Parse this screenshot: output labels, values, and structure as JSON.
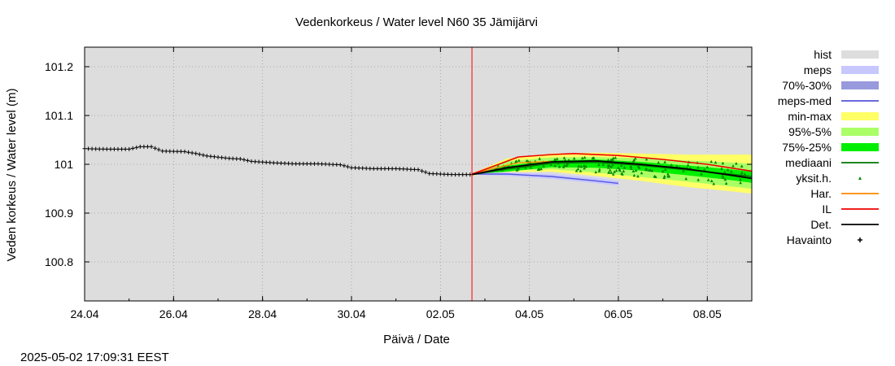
{
  "chart_data": {
    "type": "line",
    "title": "Vedenkorkeus / Water level   N60 35 Jämijärvi",
    "xlabel": "Päivä / Date",
    "ylabel": "Veden korkeus / Water level (m)",
    "timestamp": "2025-05-02 17:09:31 EEST",
    "x_range": [
      "2025-04-24",
      "2025-05-09"
    ],
    "ylim": [
      100.72,
      101.24
    ],
    "x_ticks": [
      {
        "date": "2025-04-24",
        "label": "24.04"
      },
      {
        "date": "2025-04-26",
        "label": "26.04"
      },
      {
        "date": "2025-04-28",
        "label": "28.04"
      },
      {
        "date": "2025-04-30",
        "label": "30.04"
      },
      {
        "date": "2025-05-02",
        "label": "02.05"
      },
      {
        "date": "2025-05-04",
        "label": "04.05"
      },
      {
        "date": "2025-05-06",
        "label": "06.05"
      },
      {
        "date": "2025-05-08",
        "label": "08.05"
      }
    ],
    "y_ticks": [
      {
        "value": 100.8,
        "label": "100.8"
      },
      {
        "value": 100.9,
        "label": "100.9"
      },
      {
        "value": 101.0,
        "label": "101"
      },
      {
        "value": 101.1,
        "label": "101.1"
      },
      {
        "value": 101.2,
        "label": "101.2"
      }
    ],
    "grid": true,
    "legend_position": "right",
    "forecast_start": "2025-05-02 17:00",
    "colors": {
      "hist": "#dddddd",
      "meps": "#c8c8ff",
      "meps_70_30": "#9999dd",
      "meps_med": "#5555dd",
      "min_max": "#ffff66",
      "p95_5": "#aaff66",
      "p75_25": "#00ee00",
      "mediaani": "#007700",
      "yksit": "#008800",
      "har": "#ff8800",
      "il": "#ee0000",
      "det": "#000000",
      "havainto": "#000000",
      "now_line": "#ff0000"
    },
    "legend": [
      {
        "label": "hist",
        "kind": "band",
        "color": "#dddddd"
      },
      {
        "label": "meps",
        "kind": "band",
        "color": "#c8c8ff"
      },
      {
        "label": "70%-30%",
        "kind": "band",
        "color": "#9999dd"
      },
      {
        "label": "meps-med",
        "kind": "line",
        "color": "#5555dd"
      },
      {
        "label": "min-max",
        "kind": "band",
        "color": "#ffff66"
      },
      {
        "label": "95%-5%",
        "kind": "band",
        "color": "#aaff66"
      },
      {
        "label": "75%-25%",
        "kind": "band",
        "color": "#00ee00"
      },
      {
        "label": "mediaani",
        "kind": "line",
        "color": "#007700"
      },
      {
        "label": "yksit.h.",
        "kind": "dot",
        "color": "#008800"
      },
      {
        "label": "Har.",
        "kind": "line",
        "color": "#ff8800"
      },
      {
        "label": "IL",
        "kind": "line",
        "color": "#ee0000"
      },
      {
        "label": "Det.",
        "kind": "line",
        "color": "#000000"
      },
      {
        "label": "Havainto",
        "kind": "cross",
        "color": "#000000"
      }
    ],
    "series": [
      {
        "name": "Havainto",
        "kind": "observation",
        "points": [
          [
            "2025-04-24 00:00",
            101.032
          ],
          [
            "2025-04-24 12:00",
            101.031
          ],
          [
            "2025-04-25 00:00",
            101.031
          ],
          [
            "2025-04-25 06:00",
            101.036
          ],
          [
            "2025-04-25 12:00",
            101.036
          ],
          [
            "2025-04-25 18:00",
            101.027
          ],
          [
            "2025-04-26 06:00",
            101.026
          ],
          [
            "2025-04-26 12:00",
            101.022
          ],
          [
            "2025-04-26 18:00",
            101.017
          ],
          [
            "2025-04-27 06:00",
            101.012
          ],
          [
            "2025-04-27 12:00",
            101.011
          ],
          [
            "2025-04-27 18:00",
            101.006
          ],
          [
            "2025-04-28 06:00",
            101.003
          ],
          [
            "2025-04-28 12:00",
            101.002
          ],
          [
            "2025-04-28 18:00",
            101.001
          ],
          [
            "2025-04-29 06:00",
            101.001
          ],
          [
            "2025-04-29 12:00",
            101.0
          ],
          [
            "2025-04-29 18:00",
            100.999
          ],
          [
            "2025-04-30 00:00",
            100.993
          ],
          [
            "2025-04-30 12:00",
            100.991
          ],
          [
            "2025-05-01 00:00",
            100.991
          ],
          [
            "2025-05-01 12:00",
            100.989
          ],
          [
            "2025-05-01 18:00",
            100.981
          ],
          [
            "2025-05-02 06:00",
            100.979
          ],
          [
            "2025-05-02 17:00",
            100.979
          ]
        ]
      },
      {
        "name": "Det.",
        "kind": "line",
        "points": [
          [
            "2025-05-02 17:00",
            100.979
          ],
          [
            "2025-05-03 12:00",
            100.993
          ],
          [
            "2025-05-04 12:00",
            101.005
          ],
          [
            "2025-05-05 12:00",
            101.007
          ],
          [
            "2025-05-06 12:00",
            101.0
          ],
          [
            "2025-05-07 12:00",
            100.991
          ],
          [
            "2025-05-08 12:00",
            100.978
          ],
          [
            "2025-05-09 00:00",
            100.971
          ]
        ]
      },
      {
        "name": "IL",
        "kind": "line",
        "points": [
          [
            "2025-05-02 17:00",
            100.98
          ],
          [
            "2025-05-03 06:00",
            100.998
          ],
          [
            "2025-05-03 18:00",
            101.015
          ],
          [
            "2025-05-04 12:00",
            101.02
          ],
          [
            "2025-05-05 00:00",
            101.022
          ],
          [
            "2025-05-06 00:00",
            101.018
          ],
          [
            "2025-05-07 00:00",
            101.01
          ],
          [
            "2025-05-08 00:00",
            101.0
          ],
          [
            "2025-05-09 00:00",
            100.986
          ]
        ]
      },
      {
        "name": "Har.",
        "kind": "line",
        "points": [
          [
            "2025-05-02 17:00",
            100.98
          ],
          [
            "2025-05-03 06:00",
            100.993
          ],
          [
            "2025-05-03 18:00",
            101.003
          ],
          [
            "2025-05-04 12:00",
            101.006
          ]
        ]
      },
      {
        "name": "mediaani",
        "kind": "line",
        "points": [
          [
            "2025-05-02 17:00",
            100.979
          ],
          [
            "2025-05-03 12:00",
            100.99
          ],
          [
            "2025-05-04 12:00",
            101.002
          ],
          [
            "2025-05-05 12:00",
            101.004
          ],
          [
            "2025-05-06 12:00",
            100.998
          ],
          [
            "2025-05-07 12:00",
            100.989
          ],
          [
            "2025-05-08 12:00",
            100.98
          ],
          [
            "2025-05-09 00:00",
            100.975
          ]
        ]
      },
      {
        "name": "meps-med",
        "kind": "line",
        "points": [
          [
            "2025-05-02 17:00",
            100.98
          ],
          [
            "2025-05-03 12:00",
            100.98
          ],
          [
            "2025-05-04 12:00",
            100.975
          ],
          [
            "2025-05-05 12:00",
            100.966
          ],
          [
            "2025-05-06 00:00",
            100.961
          ]
        ]
      }
    ],
    "bands": [
      {
        "name": "min-max",
        "upper": [
          [
            "2025-05-02 17:00",
            100.981
          ],
          [
            "2025-05-03 12:00",
            101.012
          ],
          [
            "2025-05-04 12:00",
            101.022
          ],
          [
            "2025-05-05 12:00",
            101.024
          ],
          [
            "2025-05-06 12:00",
            101.022
          ],
          [
            "2025-05-07 12:00",
            101.02
          ],
          [
            "2025-05-08 12:00",
            101.02
          ],
          [
            "2025-05-09 00:00",
            101.02
          ]
        ],
        "lower": [
          [
            "2025-05-02 17:00",
            100.977
          ],
          [
            "2025-05-03 12:00",
            100.984
          ],
          [
            "2025-05-04 12:00",
            100.985
          ],
          [
            "2025-05-05 12:00",
            100.976
          ],
          [
            "2025-05-06 12:00",
            100.966
          ],
          [
            "2025-05-07 12:00",
            100.954
          ],
          [
            "2025-05-08 12:00",
            100.945
          ],
          [
            "2025-05-09 00:00",
            100.94
          ]
        ]
      },
      {
        "name": "95%-5%",
        "upper": [
          [
            "2025-05-02 17:00",
            100.98
          ],
          [
            "2025-05-03 12:00",
            101.006
          ],
          [
            "2025-05-04 12:00",
            101.014
          ],
          [
            "2025-05-05 12:00",
            101.015
          ],
          [
            "2025-05-06 12:00",
            101.012
          ],
          [
            "2025-05-07 12:00",
            101.008
          ],
          [
            "2025-05-08 12:00",
            101.004
          ],
          [
            "2025-05-09 00:00",
            101.001
          ]
        ],
        "lower": [
          [
            "2025-05-02 17:00",
            100.978
          ],
          [
            "2025-05-03 12:00",
            100.987
          ],
          [
            "2025-05-04 12:00",
            100.99
          ],
          [
            "2025-05-05 12:00",
            100.983
          ],
          [
            "2025-05-06 12:00",
            100.974
          ],
          [
            "2025-05-07 12:00",
            100.965
          ],
          [
            "2025-05-08 12:00",
            100.955
          ],
          [
            "2025-05-09 00:00",
            100.95
          ]
        ]
      },
      {
        "name": "75%-25%",
        "upper": [
          [
            "2025-05-02 17:00",
            100.979
          ],
          [
            "2025-05-03 12:00",
            100.997
          ],
          [
            "2025-05-04 12:00",
            101.008
          ],
          [
            "2025-05-05 12:00",
            101.01
          ],
          [
            "2025-05-06 12:00",
            101.005
          ],
          [
            "2025-05-07 12:00",
            100.998
          ],
          [
            "2025-05-08 12:00",
            100.99
          ],
          [
            "2025-05-09 00:00",
            100.985
          ]
        ],
        "lower": [
          [
            "2025-05-02 17:00",
            100.979
          ],
          [
            "2025-05-03 12:00",
            100.985
          ],
          [
            "2025-05-04 12:00",
            100.994
          ],
          [
            "2025-05-05 12:00",
            100.993
          ],
          [
            "2025-05-06 12:00",
            100.987
          ],
          [
            "2025-05-07 12:00",
            100.978
          ],
          [
            "2025-05-08 12:00",
            100.968
          ],
          [
            "2025-05-09 00:00",
            100.962
          ]
        ]
      },
      {
        "name": "meps",
        "upper": [
          [
            "2025-05-02 17:00",
            100.981
          ],
          [
            "2025-05-03 12:00",
            100.984
          ],
          [
            "2025-05-04 12:00",
            100.98
          ],
          [
            "2025-05-05 12:00",
            100.972
          ],
          [
            "2025-05-06 00:00",
            100.966
          ]
        ],
        "lower": [
          [
            "2025-05-02 17:00",
            100.979
          ],
          [
            "2025-05-03 12:00",
            100.976
          ],
          [
            "2025-05-04 12:00",
            100.97
          ],
          [
            "2025-05-05 12:00",
            100.961
          ],
          [
            "2025-05-06 00:00",
            100.956
          ]
        ]
      }
    ]
  }
}
